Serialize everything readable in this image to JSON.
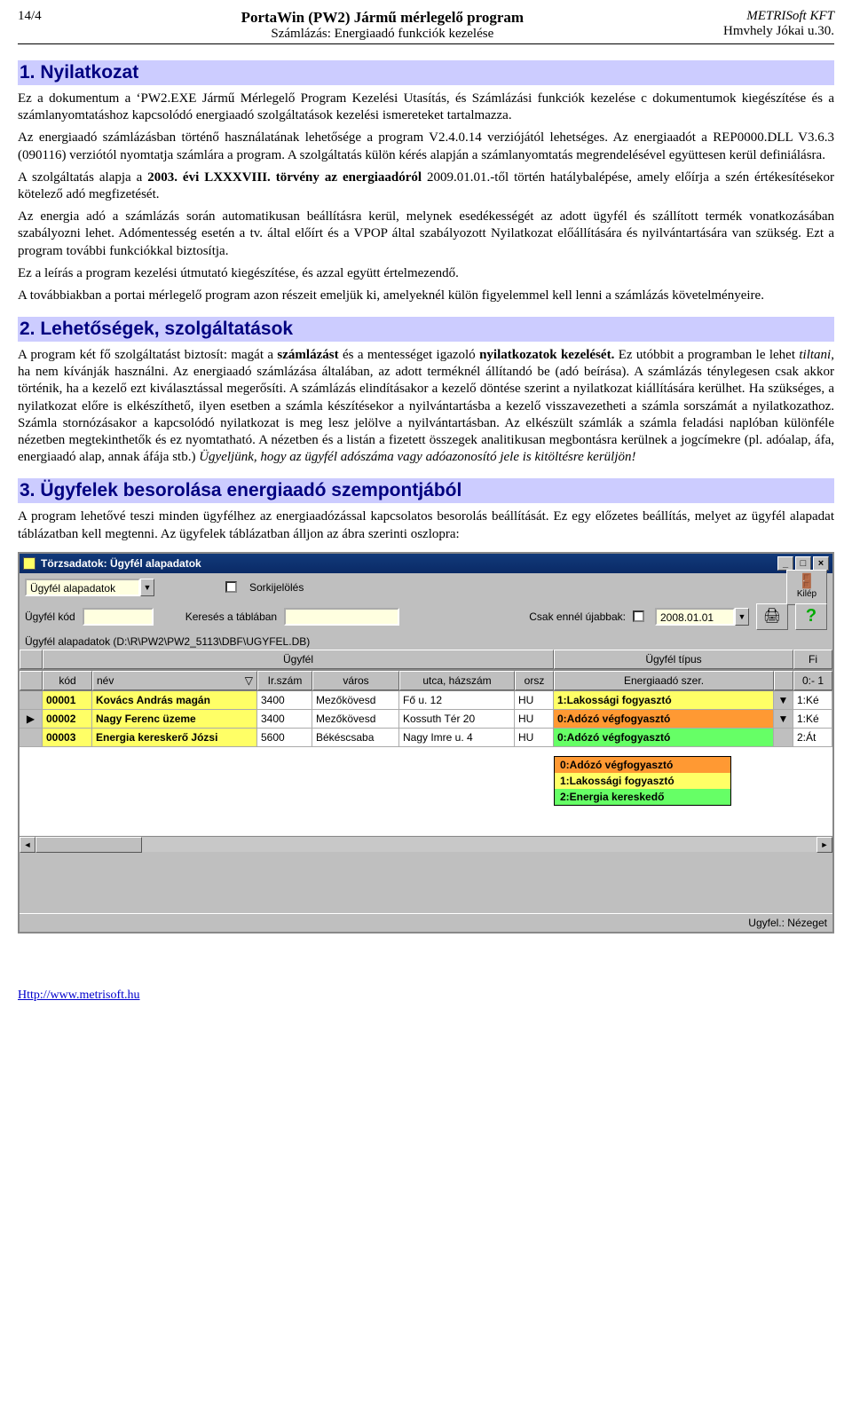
{
  "header": {
    "page": "14/4",
    "title": "PortaWin (PW2) Jármű mérlegelő program",
    "subtitle": "Számlázás: Energiaadó funkciók kezelése",
    "company_pre": "METRI",
    "company_soft": "Soft",
    "company_post": " KFT",
    "addr": "Hmvhely Jókai u.30."
  },
  "sec1": {
    "h": "1. Nyilatkozat",
    "p1a": "Ez a dokumentum a ‘PW2.EXE Jármű Mérlegelő Program Kezelési Utasítás, és Számlázási funkciók kezelése c dokumentumok kiegészítése és a számlanyomtatáshoz kapcsolódó energiaadó szolgáltatások kezelési ismereteket tartalmazza.",
    "p2": "Az energiaadó számlázásban történő használatának lehetősége a program V2.4.0.14 verziójától lehetséges. Az energiaadót a REP0000.DLL V3.6.3 (090116) verziótól nyomtatja számlára a program. A szolgáltatás külön kérés alapján a számlanyomtatás megrendelésével együttesen kerül definiálásra.",
    "p3a": "A szolgáltatás alapja a ",
    "p3b": "2003. évi LXXXVIII. törvény az energiaadóról",
    "p3c": " 2009.01.01.-től történ hatálybalépése, amely előírja a szén értékesítésekor kötelező adó megfizetését.",
    "p4": "Az energia adó a számlázás során automatikusan beállításra kerül, melynek esedékességét az adott ügyfél és szállított termék vonatkozásában szabályozni lehet. Adómentesség esetén a tv. által előírt és a VPOP által szabályozott Nyilatkozat előállítására és nyilvántartására van szükség. Ezt a program további funkciókkal biztosítja.",
    "p5": "Ez a leírás a program kezelési útmutató kiegészítése, és azzal együtt értelmezendő.",
    "p6": "A továbbiakban a portai mérlegelő program azon részeit emeljük ki, amelyeknél külön figyelemmel kell lenni a számlázás követelményeire."
  },
  "sec2": {
    "h": "2. Lehetőségek, szolgáltatások",
    "p1a": "A program két fő szolgáltatást biztosít: magát a ",
    "p1b": "számlázást",
    "p1c": " és a mentességet igazoló ",
    "p1d": "nyilatkozatok kezelését.",
    "p1e": " Ez utóbbit a programban le lehet ",
    "p1f": "tiltani",
    "p1g": ", ha nem kívánják használni. Az energiaadó számlázása általában, az adott terméknél állítandó be (adó beírása). A számlázás ténylegesen csak akkor történik, ha a kezelő ezt kiválasztással megerősíti. A számlázás elindításakor a kezelő döntése szerint a nyilatkozat kiállítására kerülhet. Ha szükséges, a nyilatkozat előre is elkészíthető, ilyen esetben a számla készítésekor a nyilvántartásba a kezelő visszavezetheti a számla sorszámát a nyilatkozathoz. Számla stornózásakor a kapcsolódó nyilatkozat is meg lesz jelölve a nyilvántartásban. Az elkészült számlák a számla feladási naplóban különféle nézetben megtekinthetők és ez nyomtatható. A nézetben és a listán a fizetett összegek analitikusan megbontásra kerülnek a jogcímekre (pl. adóalap, áfa, energiaadó alap, annak áfája stb.) ",
    "p1h": "Ügyeljünk, hogy az ügyfél adószáma vagy adóazonosító jele is kitöltésre kerüljön!"
  },
  "sec3": {
    "h": "3. Ügyfelek besorolása energiaadó szempontjából",
    "p1": "A program lehetővé teszi minden ügyfélhez az energiaadózással kapcsolatos besorolás beállítását. Ez egy előzetes beállítás, melyet az ügyfél alapadat táblázatban kell megtenni. Az ügyfelek táblázatban álljon az ábra szerinti oszlopra:"
  },
  "app": {
    "title": "Törzsadatok: Ügyfél alapadatok",
    "tab": "Ügyfél alapadatok",
    "f_kod": "Ügyfél kód",
    "sork": "Sorkijelölés",
    "kilep": "Kilép",
    "kereses": "Keresés a táblában",
    "csak": "Csak ennél újabbak:",
    "date": "2008.01.01",
    "path": "Ügyfél alapadatok (D:\\R\\PW2\\PW2_5113\\DBF\\UGYFEL.DB)",
    "grp_ugyfel": "Ügyfél",
    "grp_tipus": "Ügyfél típus",
    "grp_fi": "Fi",
    "col": {
      "kod": "kód",
      "nev": "név",
      "irsz": "Ir.szám",
      "varos": "város",
      "utca": "utca, házszám",
      "orsz": "orsz",
      "ener": "Energiaadó szer.",
      "last": "0:- 1"
    },
    "rows": [
      {
        "mark": "",
        "kod": "00001",
        "nev": "Kovács András magán",
        "irsz": "3400",
        "varos": "Mezőkövesd",
        "utca": "Fő u. 12",
        "orsz": "HU",
        "ener": "1:Lakossági fogyasztó",
        "cls": "en-y",
        "arrow": "▼",
        "last": "1:Ké"
      },
      {
        "mark": "▶",
        "kod": "00002",
        "nev": "Nagy Ferenc üzeme",
        "irsz": "3400",
        "varos": "Mezőkövesd",
        "utca": "Kossuth Tér 20",
        "orsz": "HU",
        "ener": "0:Adózó végfogyasztó",
        "cls": "en-o",
        "arrow": "▼",
        "last": "1:Ké"
      },
      {
        "mark": "",
        "kod": "00003",
        "nev": "Energia kereskerő Józsi",
        "irsz": "5600",
        "varos": "Békéscsaba",
        "utca": "Nagy Imre u. 4",
        "orsz": "HU",
        "ener": "0:Adózó végfogyasztó",
        "cls": "en-g",
        "arrow": "",
        "last": "2:Át"
      }
    ],
    "dd": [
      "0:Adózó végfogyasztó",
      "1:Lakossági fogyasztó",
      "2:Energia kereskedő"
    ],
    "status": "Ugyfel.: Nézeget"
  },
  "footer": {
    "url": "Http://www.metrisoft.hu"
  }
}
